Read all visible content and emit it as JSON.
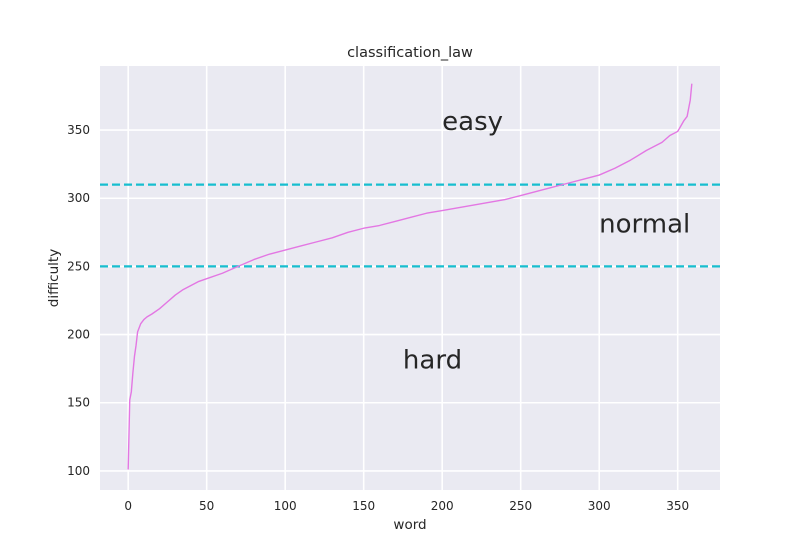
{
  "chart_data": {
    "type": "line",
    "title": "classification_law",
    "xlabel": "word",
    "ylabel": "difficulty",
    "xlim": [
      -17.95,
      376.95
    ],
    "ylim": [
      86.0,
      397.0
    ],
    "xticks": [
      0,
      50,
      100,
      150,
      200,
      250,
      300,
      350
    ],
    "yticks": [
      100,
      150,
      200,
      250,
      300,
      350
    ],
    "grid": true,
    "background": "#eaeaf2",
    "grid_color": "#ffffff",
    "series": [
      {
        "color": "#e377e3",
        "x": [
          0,
          1,
          2,
          3,
          4,
          5,
          6,
          7,
          8,
          10,
          12,
          15,
          20,
          25,
          30,
          35,
          40,
          45,
          50,
          60,
          70,
          80,
          90,
          100,
          110,
          120,
          130,
          140,
          150,
          160,
          170,
          180,
          190,
          200,
          210,
          220,
          230,
          240,
          250,
          260,
          270,
          280,
          290,
          300,
          310,
          320,
          330,
          340,
          345,
          350,
          352,
          354,
          356,
          357,
          358,
          359
        ],
        "values": [
          101,
          152,
          158,
          172,
          184,
          192,
          202,
          205,
          208,
          211,
          213,
          215,
          219,
          224,
          229,
          233,
          236,
          239,
          241,
          245,
          250,
          255,
          259,
          262,
          265,
          268,
          271,
          275,
          278,
          280,
          283,
          286,
          289,
          291,
          293,
          295,
          297,
          299,
          302,
          305,
          308,
          311,
          314,
          317,
          322,
          328,
          335,
          341,
          346,
          349,
          353,
          357,
          360,
          366,
          372,
          384
        ]
      }
    ],
    "hlines": [
      {
        "y": 250,
        "color": "#17becf",
        "style": "dashed"
      },
      {
        "y": 310,
        "color": "#17becf",
        "style": "dashed"
      }
    ],
    "annotations": [
      {
        "text": "easy",
        "x": 200,
        "y": 350
      },
      {
        "text": "normal",
        "x": 300,
        "y": 275
      },
      {
        "text": "hard",
        "x": 175,
        "y": 175
      }
    ]
  }
}
